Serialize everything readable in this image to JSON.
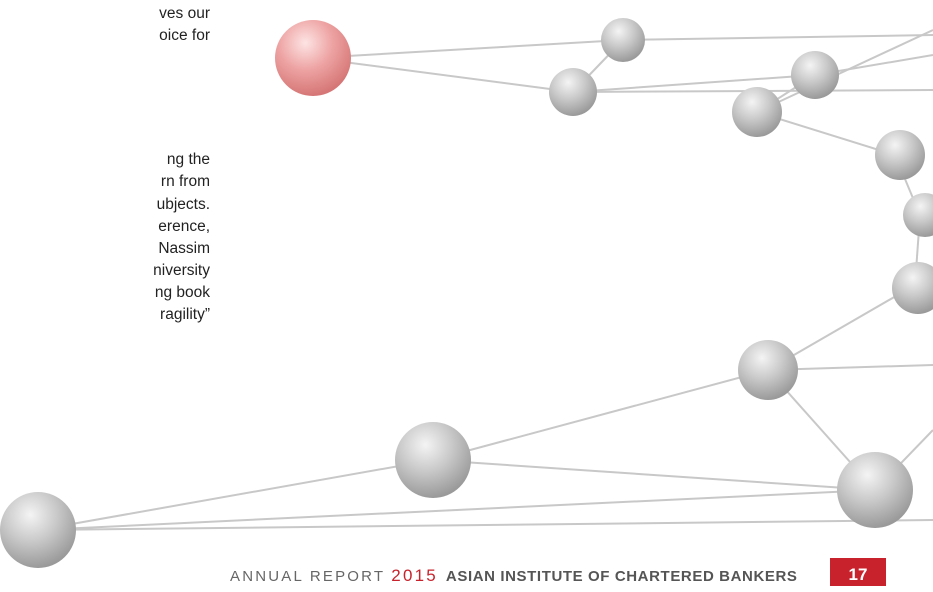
{
  "body_fragment": {
    "lines": [
      "ves our",
      "oice for",
      "ng the",
      "rn from",
      "ubjects.",
      "erence,",
      "Nassim",
      "niversity",
      "ng book",
      "ragility”"
    ]
  },
  "footer": {
    "report_label": "ANNUAL REPORT",
    "year": "2015",
    "organization": "ASIAN INSTITUTE OF CHARTERED BANKERS",
    "page_number": "17"
  }
}
